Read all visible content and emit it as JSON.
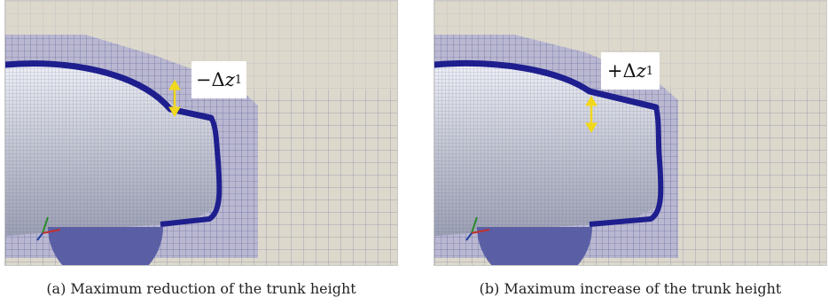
{
  "panels": [
    {
      "id": "a",
      "delta_sign": "−",
      "delta_symbol": "Δ",
      "delta_var": "z",
      "delta_sub": "1",
      "caption": "(a)  Maximum reduction of the trunk height"
    },
    {
      "id": "b",
      "delta_sign": "+",
      "delta_symbol": "Δ",
      "delta_var": "z",
      "delta_sub": "1",
      "caption": "(b)  Maximum increase of the trunk height"
    }
  ],
  "colors": {
    "background": "#dcd8cc",
    "grid": "#6a6d96",
    "refine": "#8f8fcf",
    "body_edge": "#1e1e8e",
    "body": "#c8cad3",
    "wheel": "#5a5fa6",
    "arrow": "#f2d81d"
  }
}
